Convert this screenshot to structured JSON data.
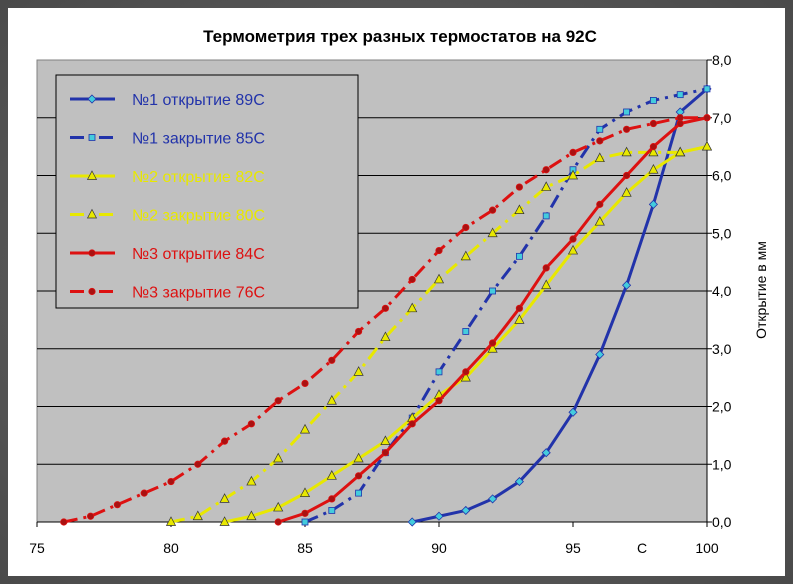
{
  "chart_data": {
    "type": "line",
    "title": "Термометрия трех разных термостатов на 92С",
    "ylabel": "Открытие в мм",
    "xunit": "С",
    "xlim": [
      75,
      100
    ],
    "ylim": [
      0,
      8
    ],
    "xticks": [
      75,
      80,
      85,
      90,
      95,
      100
    ],
    "yticks": [
      "0,0",
      "1,0",
      "2,0",
      "3,0",
      "4,0",
      "5,0",
      "6,0",
      "7,0",
      "8,0"
    ],
    "grid": true,
    "legend_position": "top-left",
    "series": [
      {
        "name": "№1 открытие 89С",
        "color": "#2233aa",
        "dash": "solid",
        "marker": "diamond",
        "marker_color": "#44ccdd",
        "x": [
          89,
          90,
          91,
          92,
          93,
          94,
          95,
          96,
          97,
          98,
          99,
          100
        ],
        "y": [
          0,
          0.1,
          0.2,
          0.4,
          0.7,
          1.2,
          1.9,
          2.9,
          4.1,
          5.5,
          7.1,
          7.5
        ]
      },
      {
        "name": "№1 закрытие 85С",
        "color": "#2233aa",
        "dash": "dashdot",
        "marker": "square",
        "marker_color": "#44ccdd",
        "x": [
          85,
          86,
          87,
          88,
          89,
          90,
          91,
          92,
          93,
          94,
          95,
          96,
          97,
          98,
          99,
          100
        ],
        "y": [
          0,
          0.2,
          0.5,
          1.2,
          1.8,
          2.6,
          3.3,
          4.0,
          4.6,
          5.3,
          6.1,
          6.8,
          7.1,
          7.3,
          7.4,
          7.5
        ]
      },
      {
        "name": "№2 открытие 82С",
        "color": "#e8e800",
        "dash": "solid",
        "marker": "triangle",
        "marker_color": "#e8e800",
        "x": [
          82,
          83,
          84,
          85,
          86,
          87,
          88,
          89,
          90,
          91,
          92,
          93,
          94,
          95,
          96,
          97,
          98,
          99,
          100
        ],
        "y": [
          0,
          0.1,
          0.25,
          0.5,
          0.8,
          1.1,
          1.4,
          1.8,
          2.2,
          2.5,
          3.0,
          3.5,
          4.1,
          4.7,
          5.2,
          5.7,
          6.1,
          6.4,
          6.5
        ]
      },
      {
        "name": "№2 закрытие 80С",
        "color": "#e8e800",
        "dash": "dashdot",
        "marker": "triangle",
        "marker_color": "#e8e800",
        "x": [
          80,
          81,
          82,
          83,
          84,
          85,
          86,
          87,
          88,
          89,
          90,
          91,
          92,
          93,
          94,
          95,
          96,
          97,
          98,
          99,
          100
        ],
        "y": [
          0,
          0.1,
          0.4,
          0.7,
          1.1,
          1.6,
          2.1,
          2.6,
          3.2,
          3.7,
          4.2,
          4.6,
          5.0,
          5.4,
          5.8,
          6.0,
          6.3,
          6.4,
          6.4,
          6.4,
          6.5
        ]
      },
      {
        "name": "№3 открытие 84С",
        "color": "#dd1111",
        "dash": "solid",
        "marker": "circle",
        "marker_color": "#aa1111",
        "x": [
          84,
          85,
          86,
          87,
          88,
          89,
          90,
          91,
          92,
          93,
          94,
          95,
          96,
          97,
          98,
          99,
          100
        ],
        "y": [
          0,
          0.15,
          0.4,
          0.8,
          1.2,
          1.7,
          2.1,
          2.6,
          3.1,
          3.7,
          4.4,
          4.9,
          5.5,
          6.0,
          6.5,
          6.9,
          7.0
        ]
      },
      {
        "name": "№3 закрытие 76С",
        "color": "#dd1111",
        "dash": "dashdot",
        "marker": "circle",
        "marker_color": "#aa1111",
        "x": [
          76,
          77,
          78,
          79,
          80,
          81,
          82,
          83,
          84,
          85,
          86,
          87,
          88,
          89,
          90,
          91,
          92,
          93,
          94,
          95,
          96,
          97,
          98,
          99,
          100
        ],
        "y": [
          0,
          0.1,
          0.3,
          0.5,
          0.7,
          1.0,
          1.4,
          1.7,
          2.1,
          2.4,
          2.8,
          3.3,
          3.7,
          4.2,
          4.7,
          5.1,
          5.4,
          5.8,
          6.1,
          6.4,
          6.6,
          6.8,
          6.9,
          7.0,
          7.0
        ]
      }
    ]
  }
}
